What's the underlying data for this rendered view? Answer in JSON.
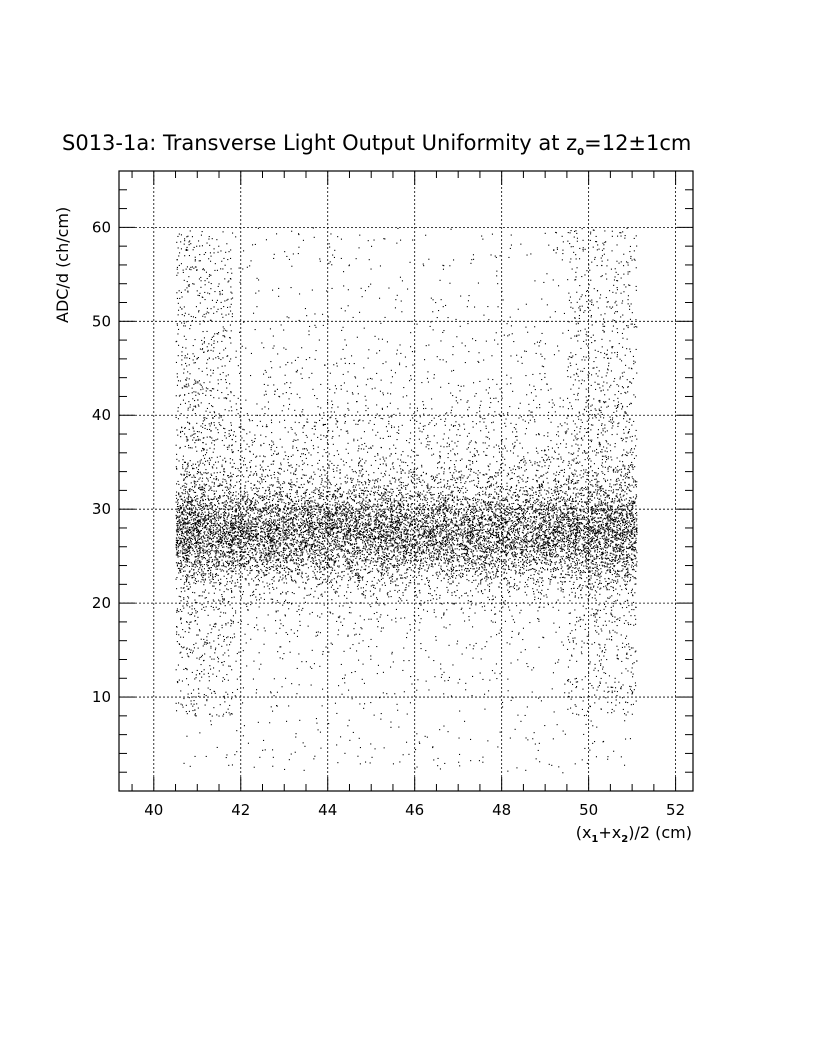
{
  "chart_data": {
    "type": "scatter",
    "title": "S013-1a: Transverse Light Output Uniformity at z",
    "title_sub": "0",
    "title_tail": "=12±1cm",
    "xlabel": {
      "prefix": "(x",
      "sub1": "1",
      "mid": "+x",
      "sub2": "2",
      "suffix": ")/2 (cm)"
    },
    "ylabel": "ADC/d (ch/cm)",
    "xlim": [
      39.2,
      52.4
    ],
    "ylim": [
      0,
      66
    ],
    "xticks": [
      40,
      42,
      44,
      46,
      48,
      50,
      52
    ],
    "yticks": [
      10,
      20,
      30,
      40,
      50,
      60
    ],
    "grid": true,
    "marker_color": "#000000",
    "distribution": {
      "x_range": [
        40.5,
        51.1
      ],
      "core_y_range": [
        23,
        31
      ],
      "core_center_y": 27.5,
      "sparse_y_range": [
        2,
        60
      ],
      "edge_spread_x": [
        [
          40.5,
          41.8
        ],
        [
          49.5,
          51.1
        ]
      ]
    }
  }
}
